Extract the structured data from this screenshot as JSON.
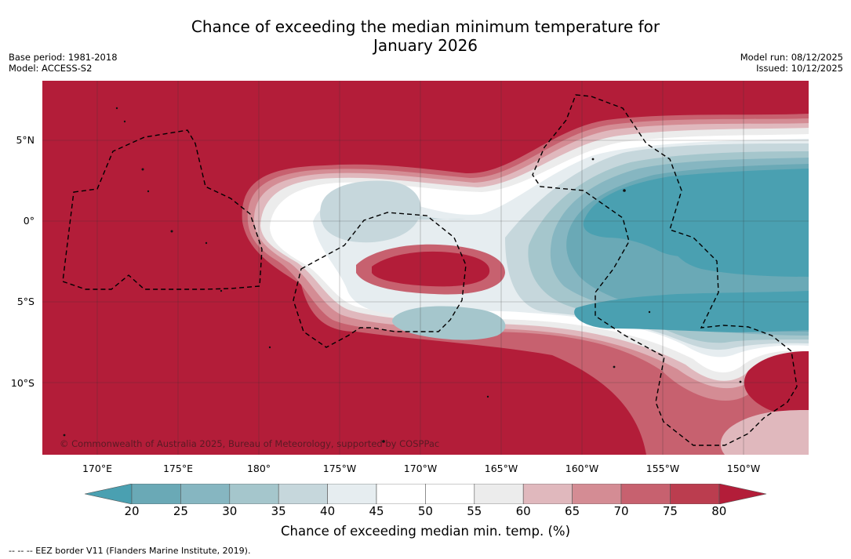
{
  "title": {
    "line1": "Chance of exceeding the median minimum temperature for",
    "line2": "January 2026"
  },
  "meta_left": {
    "base_period": "Base period: 1981-2018",
    "model": "Model: ACCESS-S2"
  },
  "meta_right": {
    "model_run": "Model run: 08/12/2025",
    "issued": "Issued: 10/12/2025"
  },
  "map": {
    "lat_labels": [
      "5°N",
      "0°",
      "5°S",
      "10°S"
    ],
    "lon_labels": [
      "170°E",
      "175°E",
      "180°",
      "175°W",
      "170°W",
      "165°W",
      "160°W",
      "155°W",
      "150°W"
    ],
    "copyright": "© Commonwealth of Australia 2025, Bureau of Meteorology, supported by COSPPac"
  },
  "colorbar": {
    "ticks": [
      "20",
      "25",
      "30",
      "35",
      "40",
      "45",
      "50",
      "55",
      "60",
      "65",
      "70",
      "75",
      "80"
    ],
    "colors": [
      "#6aa9b6",
      "#86b6c1",
      "#a5c6cc",
      "#c6d7dc",
      "#e6edf0",
      "#ffffff",
      "#ffffff",
      "#ececec",
      "#e0b8bd",
      "#d48c94",
      "#c7616f",
      "#bb3d4f"
    ],
    "under_color": "#4aa0b1",
    "over_color": "#b31d39",
    "label": "Chance of exceeding median min. temp. (%)"
  },
  "footnote": "-- -- -- EEZ border V11 (Flanders Marine Institute, 2019).",
  "colors": {
    "hot": "#b31d39",
    "cool": "#4aa0b1"
  }
}
